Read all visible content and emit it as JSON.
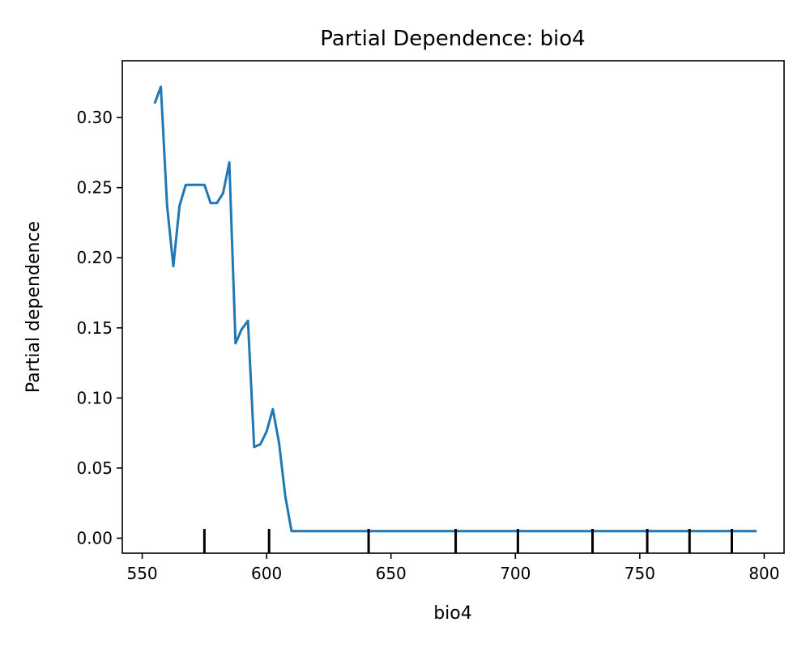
{
  "chart_data": {
    "type": "line",
    "title": "Partial Dependence: bio4",
    "xlabel": "bio4",
    "ylabel": "Partial dependence",
    "xlim": [
      542,
      808
    ],
    "ylim": [
      -0.0107,
      0.3405
    ],
    "xticks": [
      550,
      600,
      650,
      700,
      750,
      800
    ],
    "xtick_labels": [
      "550",
      "600",
      "650",
      "700",
      "750",
      "800"
    ],
    "yticks": [
      0.0,
      0.05,
      0.1,
      0.15,
      0.2,
      0.25,
      0.3
    ],
    "ytick_labels": [
      "0.00",
      "0.05",
      "0.10",
      "0.15",
      "0.20",
      "0.25",
      "0.30"
    ],
    "grid": false,
    "series": [
      {
        "color": "#1f77b4",
        "x": [
          555,
          557.5,
          560,
          562.5,
          565,
          567.5,
          570,
          572.5,
          575,
          577.5,
          580,
          582.5,
          585,
          587.5,
          590,
          592.5,
          595,
          597.5,
          600,
          602.5,
          605,
          607.5,
          610,
          650,
          700,
          750,
          797
        ],
        "y": [
          0.31,
          0.322,
          0.237,
          0.194,
          0.237,
          0.252,
          0.252,
          0.252,
          0.252,
          0.239,
          0.239,
          0.246,
          0.268,
          0.139,
          0.149,
          0.155,
          0.065,
          0.067,
          0.076,
          0.092,
          0.068,
          0.03,
          0.005,
          0.005,
          0.005,
          0.005,
          0.005
        ]
      }
    ],
    "rug": {
      "color": "#000000",
      "x": [
        575,
        601,
        641,
        676,
        701,
        731,
        753,
        770,
        787
      ]
    }
  }
}
